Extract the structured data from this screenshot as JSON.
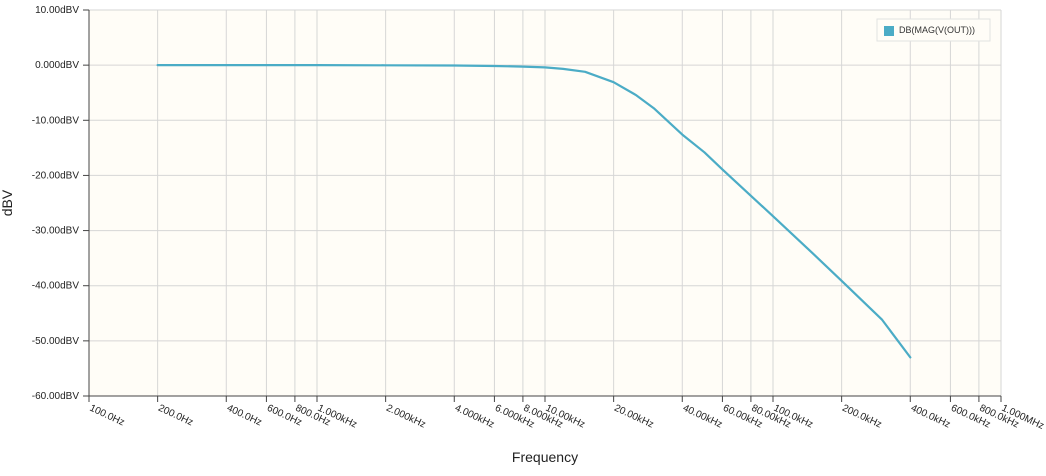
{
  "chart_data": {
    "type": "line",
    "xlabel": "Frequency",
    "ylabel": "dBV",
    "x_scale": "log",
    "xlim": [
      100,
      1000000
    ],
    "ylim": [
      -60,
      10
    ],
    "grid": true,
    "legend_position": "top-right",
    "background_color": "#fffdf7",
    "y_ticks": [
      {
        "value": 10,
        "label": "10.00dBV"
      },
      {
        "value": 0,
        "label": "0.000dBV"
      },
      {
        "value": -10,
        "label": "-10.00dBV"
      },
      {
        "value": -20,
        "label": "-20.00dBV"
      },
      {
        "value": -30,
        "label": "-30.00dBV"
      },
      {
        "value": -40,
        "label": "-40.00dBV"
      },
      {
        "value": -50,
        "label": "-50.00dBV"
      },
      {
        "value": -60,
        "label": "-60.00dBV"
      }
    ],
    "x_ticks": [
      {
        "value": 100,
        "label": "100.0Hz"
      },
      {
        "value": 200,
        "label": "200.0Hz"
      },
      {
        "value": 400,
        "label": "400.0Hz"
      },
      {
        "value": 600,
        "label": "600.0Hz"
      },
      {
        "value": 800,
        "label": "800.0Hz"
      },
      {
        "value": 1000,
        "label": "1.000kHz"
      },
      {
        "value": 2000,
        "label": "2.000kHz"
      },
      {
        "value": 4000,
        "label": "4.000kHz"
      },
      {
        "value": 6000,
        "label": "6.000kHz"
      },
      {
        "value": 8000,
        "label": "8.000kHz"
      },
      {
        "value": 10000,
        "label": "10.00kHz"
      },
      {
        "value": 20000,
        "label": "20.00kHz"
      },
      {
        "value": 40000,
        "label": "40.00kHz"
      },
      {
        "value": 60000,
        "label": "60.00kHz"
      },
      {
        "value": 80000,
        "label": "80.00kHz"
      },
      {
        "value": 100000,
        "label": "100.0kHz"
      },
      {
        "value": 200000,
        "label": "200.0kHz"
      },
      {
        "value": 400000,
        "label": "400.0kHz"
      },
      {
        "value": 600000,
        "label": "600.0kHz"
      },
      {
        "value": 800000,
        "label": "800.0kHz"
      },
      {
        "value": 1000000,
        "label": "1.000MHz"
      }
    ],
    "series": [
      {
        "name": "DB(MAG(V(OUT)))",
        "color": "#4bacc6",
        "x": [
          200,
          500,
          1000,
          2000,
          4000,
          6000,
          8000,
          10000,
          12000,
          15000,
          20000,
          25000,
          30000,
          40000,
          50000,
          60000,
          80000,
          100000,
          150000,
          200000,
          300000,
          400000
        ],
        "y": [
          0,
          0,
          0,
          -0.02,
          -0.07,
          -0.15,
          -0.27,
          -0.41,
          -0.69,
          -1.2,
          -3.1,
          -5.4,
          -7.8,
          -12.6,
          -15.8,
          -18.9,
          -23.7,
          -27.4,
          -34.2,
          -39.1,
          -46.1,
          -53.0
        ]
      }
    ]
  }
}
